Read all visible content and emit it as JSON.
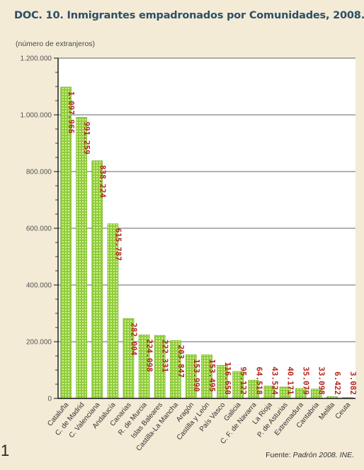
{
  "header": {
    "title": "DOC. 10. Inmigrantes empadronados por Comunidades, 2008.",
    "unit_note": "(número de extranjeros)"
  },
  "footer": {
    "source_prefix": "Fuente: ",
    "source_name": "Padrón 2008. INE.",
    "stray_mark": "1"
  },
  "colors": {
    "bar": "#8fce3a",
    "bar_stripe": "#d7ee9a",
    "data_label": "#b3261e",
    "plot_bg": "#ffffff",
    "axis": "#111111",
    "grid": "#333333"
  },
  "chart_data": {
    "type": "bar",
    "title": "DOC. 10. Inmigrantes empadronados por Comunidades, 2008.",
    "ylabel": "(número de extranjeros)",
    "ylim": [
      0,
      1200000
    ],
    "ytick_step": 200000,
    "grid": true,
    "yticks": [
      "0",
      "200.000",
      "400.000",
      "600.000",
      "800.000",
      "1.000.000",
      "1.200.000"
    ],
    "categories": [
      "Cataluña",
      "C. de Madrid",
      "C. Valenciana",
      "Andalucía",
      "Canarias",
      "R. de Murcia",
      "Islas Baleares",
      "Castilla-La Mancha",
      "Aragón",
      "Castilla y León",
      "País Vasco",
      "Galicia",
      "C. F. de Navarra",
      "La Rioja",
      "P. de Asturias",
      "Extremadura",
      "Cantabria",
      "Melilla",
      "Ceuta"
    ],
    "values": [
      1097966,
      991259,
      838224,
      615787,
      282004,
      224098,
      222331,
      203847,
      153990,
      153495,
      116650,
      95122,
      64518,
      43524,
      40171,
      35079,
      33098,
      6422,
      3082
    ],
    "labels": [
      "1.097.966",
      "991.259",
      "838.224",
      "615.787",
      "282.004",
      "224.098",
      "222.331",
      "203.847",
      "153.990",
      "153.495",
      "116.650",
      "95.122",
      "64.518",
      "43.524",
      "40.171",
      "35.079",
      "33.098",
      "6.422",
      "3.082"
    ]
  }
}
